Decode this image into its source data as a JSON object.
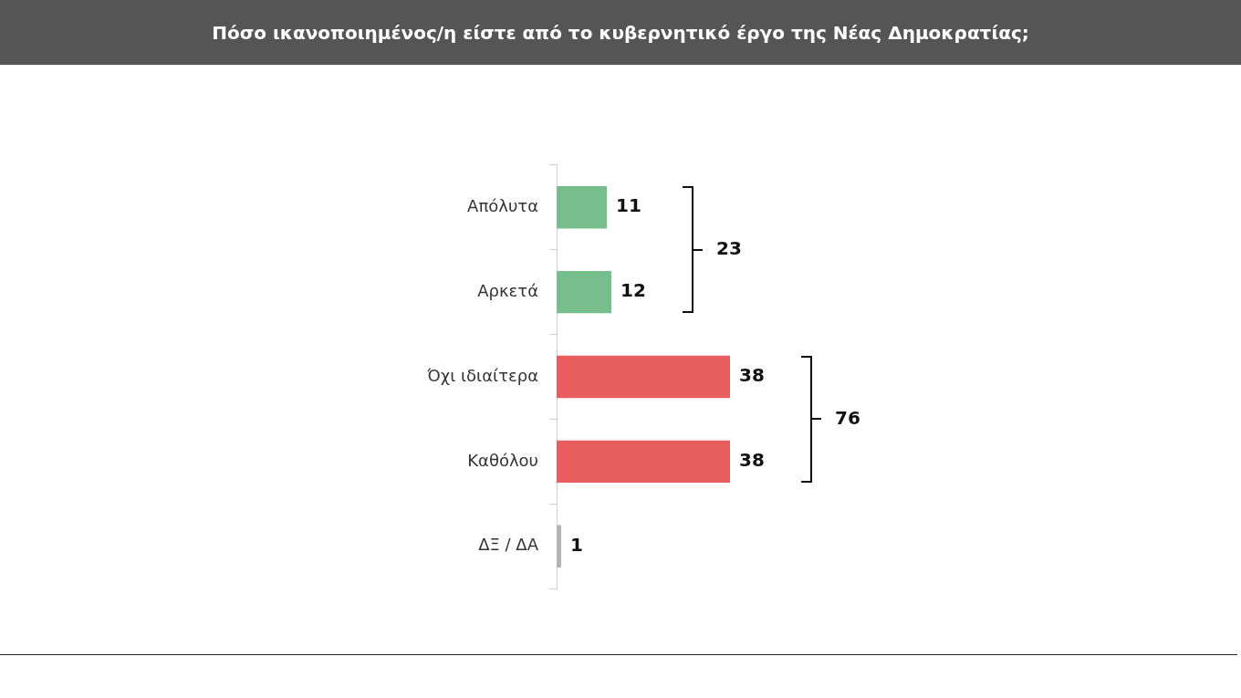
{
  "chart_data": {
    "type": "bar",
    "orientation": "horizontal",
    "title": "Πόσο ικανοποιημένος/η είστε από το κυβερνητικό έργο της Νέας Δημοκρατίας;",
    "categories": [
      "Απόλυτα",
      "Αρκετά",
      "Όχι ιδιαίτερα",
      "Καθόλου",
      "ΔΞ / ΔΑ"
    ],
    "values": [
      11,
      12,
      38,
      38,
      1
    ],
    "colors": [
      "#76bf8c",
      "#76bf8c",
      "#e85d5d",
      "#e85d5d",
      "#b3b3b3"
    ],
    "data_labels": true,
    "annotations": [
      "23",
      "76"
    ],
    "legend": false,
    "grid": false
  }
}
